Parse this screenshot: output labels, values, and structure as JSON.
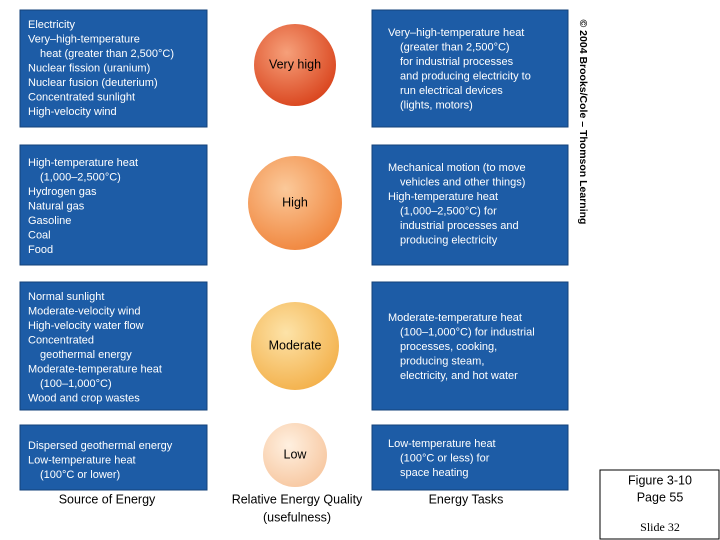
{
  "rows": [
    {
      "source": [
        "Electricity",
        "Very–high-temperature",
        "heat (greater than 2,500°C)",
        "Nuclear fission (uranium)",
        "Nuclear fusion (deuterium)",
        "Concentrated sunlight",
        "High-velocity wind"
      ],
      "quality": "Very high",
      "tasks": [
        "Very–high-temperature heat",
        "(greater than 2,500°C)",
        "for industrial processes",
        "and producing electricity to",
        "run electrical devices",
        "(lights, motors)"
      ]
    },
    {
      "source": [
        "High-temperature heat",
        "(1,000–2,500°C)",
        "Hydrogen gas",
        "Natural gas",
        "Gasoline",
        "Coal",
        "Food"
      ],
      "quality": "High",
      "tasks": [
        "Mechanical motion (to move",
        "vehicles and other things)",
        "High-temperature heat",
        "(1,000–2,500°C) for",
        "industrial processes and",
        "producing electricity"
      ]
    },
    {
      "source": [
        "Normal sunlight",
        "Moderate-velocity wind",
        "High-velocity water flow",
        "Concentrated",
        "geothermal energy",
        "Moderate-temperature heat",
        "(100–1,000°C)",
        "Wood and crop wastes"
      ],
      "quality": "Moderate",
      "tasks": [
        "Moderate-temperature heat",
        "(100–1,000°C) for industrial",
        "processes, cooking,",
        "producing steam,",
        "electricity, and hot water"
      ]
    },
    {
      "source": [
        "Dispersed geothermal energy",
        "Low-temperature heat",
        "(100°C or lower)"
      ],
      "quality": "Low",
      "tasks": [
        "Low-temperature heat",
        "(100°C or less) for",
        "space heating"
      ]
    }
  ],
  "column_labels": {
    "source": "Source of Energy",
    "quality": [
      "Relative Energy Quality",
      "(usefulness)"
    ],
    "tasks": "Energy Tasks"
  },
  "copyright": "© 2004 Brooks/Cole – Thomson Learning",
  "figure": {
    "label": "Figure 3-10",
    "page": "Page 55",
    "slide": "Slide 32"
  }
}
